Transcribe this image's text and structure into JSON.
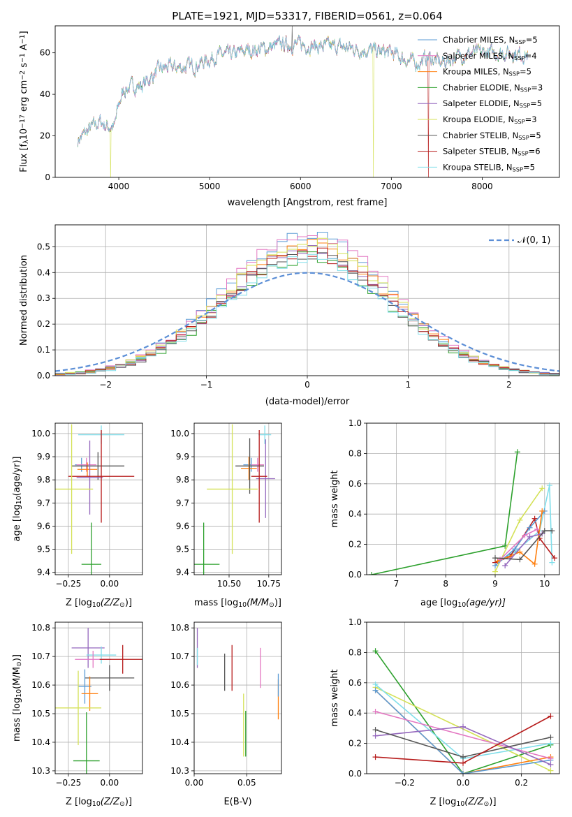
{
  "figure": {
    "title": "PLATE=1921, MJD=53317, FIBERID=0561, z=0.064"
  },
  "series_colors": {
    "Chabrier MILES": "#5b9bd5",
    "Salpeter MILES": "#e377c2",
    "Kroupa MILES": "#ff7f0e",
    "Chabrier ELODIE": "#2ca02c",
    "Salpeter ELODIE": "#9467bd",
    "Kroupa ELODIE": "#d4e157",
    "Chabrier STELIB": "#555555",
    "Salpeter STELIB": "#b71c1c",
    "Kroupa STELIB": "#80deea"
  },
  "chart_data": [
    {
      "id": "spectrum",
      "type": "line",
      "title": "PLATE=1921, MJD=53317, FIBERID=0561, z=0.064",
      "xlabel": "wavelength [Angstrom, rest frame]",
      "ylabel_parts": [
        "Flux [f",
        "λ",
        "10",
        "−17",
        " erg cm",
        "−2",
        " s",
        "−1",
        " A",
        "−1",
        "]"
      ],
      "xlim": [
        3300,
        8850
      ],
      "ylim": [
        0,
        73
      ],
      "xticks": [
        4000,
        5000,
        6000,
        7000,
        8000
      ],
      "yticks": [
        0,
        20,
        40,
        60
      ],
      "legend_position": "top-right",
      "legend": [
        {
          "label": "Chabrier MILES, N",
          "sub": "SSP",
          "suffix": "=5",
          "series": "Chabrier MILES"
        },
        {
          "label": "Salpeter MILES, N",
          "sub": "SSP",
          "suffix": "=4",
          "series": "Salpeter MILES"
        },
        {
          "label": "Kroupa MILES, N",
          "sub": "SSP",
          "suffix": "=5",
          "series": "Kroupa MILES"
        },
        {
          "label": "Chabrier ELODIE, N",
          "sub": "SSP",
          "suffix": "=3",
          "series": "Chabrier ELODIE"
        },
        {
          "label": "Salpeter ELODIE, N",
          "sub": "SSP",
          "suffix": "=5",
          "series": "Salpeter ELODIE"
        },
        {
          "label": "Kroupa ELODIE, N",
          "sub": "SSP",
          "suffix": "=3",
          "series": "Kroupa ELODIE"
        },
        {
          "label": "Chabrier STELIB, N",
          "sub": "SSP",
          "suffix": "=5",
          "series": "Chabrier STELIB"
        },
        {
          "label": "Salpeter STELIB, N",
          "sub": "SSP",
          "suffix": "=6",
          "series": "Salpeter STELIB"
        },
        {
          "label": "Kroupa STELIB, N",
          "sub": "SSP",
          "suffix": "=5",
          "series": "Kroupa STELIB"
        }
      ],
      "continuum": {
        "x": [
          3550,
          3650,
          3700,
          3800,
          3850,
          3950,
          4000,
          4050,
          4150,
          4250,
          4350,
          4450,
          4550,
          4700,
          4850,
          4950,
          5100,
          5250,
          5400,
          5600,
          5800,
          6000,
          6200,
          6400,
          6600,
          6800,
          7000,
          7100,
          7200,
          7300,
          7400,
          7550,
          7700,
          7900,
          8100,
          8300,
          8500
        ],
        "y": [
          18,
          22,
          24,
          27,
          25,
          24,
          35,
          42,
          44,
          44,
          48,
          52,
          53,
          53,
          54,
          56,
          59,
          59,
          61,
          62,
          64,
          64,
          63,
          63,
          62,
          61,
          60,
          58,
          56,
          55,
          58,
          55,
          58,
          60,
          60,
          60,
          59
        ]
      },
      "dropouts": [
        {
          "x": 3910,
          "series": "Kroupa ELODIE"
        },
        {
          "x": 6800,
          "series": "Kroupa ELODIE"
        },
        {
          "x": 7410,
          "series": "Salpeter STELIB"
        }
      ],
      "spike": {
        "x": 5910,
        "y": 73
      }
    },
    {
      "id": "residuals",
      "type": "histogram",
      "xlabel": "(data-model)/error",
      "ylabel": "Normed distribution",
      "xlim": [
        -2.5,
        2.5
      ],
      "ylim": [
        0,
        0.585
      ],
      "xticks": [
        -2,
        -1,
        0,
        1,
        2
      ],
      "yticks": [
        0.0,
        0.1,
        0.2,
        0.3,
        0.4,
        0.5
      ],
      "bin_width": 0.1,
      "legend_position": "top-right",
      "legend": [
        {
          "label": "𝒩(0, 1)",
          "style": "dashed"
        }
      ],
      "reference_curve": {
        "name": "𝒩(0, 1)",
        "mean": 0,
        "sigma": 1,
        "color": "#5b8ed6"
      },
      "peak_values": {
        "Chabrier MILES": 0.55,
        "Salpeter MILES": 0.555,
        "Kroupa MILES": 0.51,
        "Chabrier ELODIE": 0.46,
        "Salpeter ELODIE": 0.49,
        "Kroupa ELODIE": 0.52,
        "Chabrier STELIB": 0.47,
        "Salpeter STELIB": 0.48,
        "Kroupa STELIB": 0.45
      }
    },
    {
      "id": "age-vs-Z",
      "type": "scatter-errorbar",
      "xlabel_parts": [
        "Z [log",
        "10",
        "(Z/Z",
        "⊙",
        ")]"
      ],
      "ylabel_parts": [
        "age  [log",
        "10",
        "(age/yr)]"
      ],
      "xlim": [
        -0.33,
        0.2
      ],
      "ylim": [
        9.39,
        10.045
      ],
      "xticks": [
        -0.25,
        0.0
      ],
      "xticklabels": [
        "−0.25",
        "0.00"
      ],
      "yticks": [
        9.4,
        9.5,
        9.6,
        9.7,
        9.8,
        9.9,
        10.0
      ],
      "points": [
        {
          "series": "Kroupa STELIB",
          "x": -0.05,
          "xerr": 0.14,
          "y": 9.995,
          "yerr": 0.04
        },
        {
          "series": "Chabrier MILES",
          "x": -0.17,
          "xerr": 0.04,
          "y": 9.865,
          "yerr": 0.03
        },
        {
          "series": "Salpeter MILES",
          "x": -0.14,
          "xerr": 0.06,
          "y": 9.865,
          "yerr": 0.03
        },
        {
          "series": "Kroupa MILES",
          "x": -0.135,
          "xerr": 0.06,
          "y": 9.845,
          "yerr": 0.03
        },
        {
          "series": "Chabrier STELIB",
          "x": -0.07,
          "xerr": 0.16,
          "y": 9.86,
          "yerr": 0.06
        },
        {
          "series": "Salpeter ELODIE",
          "x": -0.12,
          "xerr": 0.08,
          "y": 9.81,
          "yerr": 0.16
        },
        {
          "series": "Salpeter STELIB",
          "x": -0.05,
          "xerr": 0.2,
          "y": 9.815,
          "yerr": 0.2
        },
        {
          "series": "Kroupa ELODIE",
          "x": -0.23,
          "xerr": 0.13,
          "y": 9.76,
          "yerr": 0.28
        },
        {
          "series": "Chabrier ELODIE",
          "x": -0.11,
          "xerr": 0.06,
          "y": 9.435,
          "yerr": 0.18
        }
      ]
    },
    {
      "id": "age-vs-mass",
      "type": "scatter-errorbar",
      "xlabel_parts": [
        "mass [log",
        "10",
        "(M/M",
        "⊙",
        ")]"
      ],
      "xlim": [
        10.28,
        10.83
      ],
      "ylim": [
        9.39,
        10.045
      ],
      "xticks": [
        10.5,
        10.75
      ],
      "xticklabels": [
        "10.50",
        "10.75"
      ],
      "yticks": [
        9.4,
        9.5,
        9.6,
        9.7,
        9.8,
        9.9,
        10.0
      ],
      "points": [
        {
          "series": "Kroupa STELIB",
          "x": 10.725,
          "xerr": 0.04,
          "y": 9.995,
          "yerr": 0.04
        },
        {
          "series": "Chabrier MILES",
          "x": 10.64,
          "xerr": 0.05,
          "y": 9.865,
          "yerr": 0.03
        },
        {
          "series": "Salpeter MILES",
          "x": 10.68,
          "xerr": 0.04,
          "y": 9.865,
          "yerr": 0.03
        },
        {
          "series": "Kroupa MILES",
          "x": 10.625,
          "xerr": 0.05,
          "y": 9.85,
          "yerr": 0.05
        },
        {
          "series": "Chabrier STELIB",
          "x": 10.63,
          "xerr": 0.09,
          "y": 9.86,
          "yerr": 0.12
        },
        {
          "series": "Salpeter ELODIE",
          "x": 10.73,
          "xerr": 0.06,
          "y": 9.805,
          "yerr": 0.17
        },
        {
          "series": "Salpeter STELIB",
          "x": 10.69,
          "xerr": 0.05,
          "y": 9.815,
          "yerr": 0.2
        },
        {
          "series": "Kroupa ELODIE",
          "x": 10.52,
          "xerr": 0.16,
          "y": 9.76,
          "yerr": 0.28
        },
        {
          "series": "Chabrier ELODIE",
          "x": 10.34,
          "xerr": 0.1,
          "y": 9.435,
          "yerr": 0.18
        }
      ]
    },
    {
      "id": "massweight-vs-age",
      "type": "line",
      "xlabel_parts": [
        "age  [log",
        "10",
        "(age/yr)]"
      ],
      "ylabel": "mass weight",
      "xlim": [
        6.4,
        10.3
      ],
      "ylim": [
        0,
        1.0
      ],
      "xticks": [
        7,
        8,
        9,
        10
      ],
      "yticks": [
        0.0,
        0.2,
        0.4,
        0.6,
        0.8,
        1.0
      ],
      "series": [
        {
          "name": "Chabrier ELODIE",
          "x": [
            6.5,
            9.2,
            9.45
          ],
          "y": [
            0.0,
            0.19,
            0.81
          ]
        },
        {
          "name": "Kroupa ELODIE",
          "x": [
            9.0,
            9.5,
            9.95
          ],
          "y": [
            0.02,
            0.36,
            0.57
          ]
        },
        {
          "name": "Kroupa STELIB",
          "x": [
            9.0,
            9.4,
            9.9,
            10.1,
            10.15
          ],
          "y": [
            0.08,
            0.15,
            0.29,
            0.59,
            0.08
          ]
        },
        {
          "name": "Salpeter STELIB",
          "x": [
            9.0,
            9.3,
            9.8,
            9.9,
            10.2
          ],
          "y": [
            0.08,
            0.12,
            0.37,
            0.24,
            0.11
          ]
        },
        {
          "name": "Chabrier MILES",
          "x": [
            9.0,
            9.4,
            9.7,
            10.0
          ],
          "y": [
            0.06,
            0.17,
            0.31,
            0.42
          ]
        },
        {
          "name": "Kroupa MILES",
          "x": [
            9.05,
            9.5,
            9.8,
            9.95
          ],
          "y": [
            0.09,
            0.15,
            0.07,
            0.42
          ]
        },
        {
          "name": "Salpeter MILES",
          "x": [
            9.1,
            9.6,
            9.85
          ],
          "y": [
            0.1,
            0.26,
            0.3
          ]
        },
        {
          "name": "Salpeter ELODIE",
          "x": [
            9.2,
            9.7,
            9.95
          ],
          "y": [
            0.06,
            0.25,
            0.27
          ]
        },
        {
          "name": "Chabrier STELIB",
          "x": [
            9.0,
            9.5,
            10.0,
            10.15
          ],
          "y": [
            0.11,
            0.1,
            0.29,
            0.29
          ]
        }
      ]
    },
    {
      "id": "mass-vs-Z",
      "type": "scatter-errorbar",
      "xlabel_parts": [
        "Z [log",
        "10",
        "(Z/Z",
        "⊙",
        ")]"
      ],
      "ylabel_parts": [
        "mass [log",
        "10",
        "(M/M",
        "⊙",
        ")]"
      ],
      "xlim": [
        -0.33,
        0.2
      ],
      "ylim": [
        10.29,
        10.82
      ],
      "xticks": [
        -0.25,
        0.0
      ],
      "xticklabels": [
        "−0.25",
        "0.00"
      ],
      "yticks": [
        10.3,
        10.4,
        10.5,
        10.6,
        10.7,
        10.8
      ],
      "points": [
        {
          "series": "Salpeter ELODIE",
          "x": -0.13,
          "xerr": 0.1,
          "y": 10.73,
          "yerr": 0.07
        },
        {
          "series": "Kroupa STELIB",
          "x": -0.05,
          "xerr": 0.09,
          "y": 10.705,
          "yerr": 0.03
        },
        {
          "series": "Salpeter MILES",
          "x": -0.1,
          "xerr": 0.11,
          "y": 10.69,
          "yerr": 0.03
        },
        {
          "series": "Salpeter STELIB",
          "x": 0.08,
          "xerr": 0.14,
          "y": 10.69,
          "yerr": 0.05
        },
        {
          "series": "Chabrier STELIB",
          "x": 0.0,
          "xerr": 0.15,
          "y": 10.625,
          "yerr": 0.045
        },
        {
          "series": "Chabrier MILES",
          "x": -0.15,
          "xerr": 0.04,
          "y": 10.595,
          "yerr": 0.06
        },
        {
          "series": "Kroupa MILES",
          "x": -0.12,
          "xerr": 0.05,
          "y": 10.57,
          "yerr": 0.06
        },
        {
          "series": "Kroupa ELODIE",
          "x": -0.19,
          "xerr": 0.14,
          "y": 10.52,
          "yerr": 0.13
        },
        {
          "series": "Chabrier ELODIE",
          "x": -0.14,
          "xerr": 0.08,
          "y": 10.335,
          "yerr": 0.17
        }
      ]
    },
    {
      "id": "mass-vs-EBV",
      "type": "scatter-errorbar",
      "xlabel": "E(B-V)",
      "xlim": [
        0.0,
        0.083
      ],
      "ylim": [
        10.29,
        10.82
      ],
      "xticks": [
        0.0,
        0.05
      ],
      "xticklabels": [
        "0.00",
        "0.05"
      ],
      "yticks": [
        10.3,
        10.4,
        10.5,
        10.6,
        10.7,
        10.8
      ],
      "points": [
        {
          "series": "Salpeter ELODIE",
          "x": 0.003,
          "y": 10.73,
          "yerr": 0.07
        },
        {
          "series": "Kroupa STELIB",
          "x": 0.003,
          "y": 10.7,
          "yerr": 0.03
        },
        {
          "series": "Chabrier STELIB",
          "x": 0.029,
          "y": 10.645,
          "yerr": 0.065
        },
        {
          "series": "Salpeter STELIB",
          "x": 0.036,
          "y": 10.66,
          "yerr": 0.08
        },
        {
          "series": "Salpeter MILES",
          "x": 0.063,
          "y": 10.66,
          "yerr": 0.07
        },
        {
          "series": "Kroupa ELODIE",
          "x": 0.047,
          "y": 10.46,
          "yerr": 0.11
        },
        {
          "series": "Chabrier ELODIE",
          "x": 0.049,
          "y": 10.43,
          "yerr": 0.08
        },
        {
          "series": "Kroupa MILES",
          "x": 0.08,
          "y": 10.55,
          "yerr": 0.07
        },
        {
          "series": "Chabrier MILES",
          "x": 0.08,
          "y": 10.6,
          "yerr": 0.04
        }
      ]
    },
    {
      "id": "massweight-vs-Z",
      "type": "line",
      "xlabel_parts": [
        "Z [log",
        "10",
        "(Z/Z",
        "⊙",
        ")]"
      ],
      "ylabel": "mass weight",
      "xlim": [
        -0.33,
        0.33
      ],
      "ylim": [
        0,
        1.0
      ],
      "xticks": [
        -0.2,
        0.0,
        0.2
      ],
      "xticklabels": [
        "−0.2",
        "0.0",
        "0.2"
      ],
      "yticks": [
        0.0,
        0.2,
        0.4,
        0.6,
        0.8,
        1.0
      ],
      "series": [
        {
          "name": "Chabrier ELODIE",
          "x": [
            -0.3,
            0.0,
            0.3
          ],
          "y": [
            0.81,
            0.0,
            0.19
          ]
        },
        {
          "name": "Kroupa ELODIE",
          "x": [
            -0.3,
            0.3
          ],
          "y": [
            0.57,
            0.02
          ]
        },
        {
          "name": "Kroupa STELIB",
          "x": [
            -0.3,
            0.0,
            0.3
          ],
          "y": [
            0.59,
            0.1,
            0.2
          ]
        },
        {
          "name": "Kroupa MILES",
          "x": [
            -0.3,
            0.0,
            0.3
          ],
          "y": [
            0.55,
            0.0,
            0.11
          ]
        },
        {
          "name": "Chabrier MILES",
          "x": [
            -0.3,
            0.0,
            0.3
          ],
          "y": [
            0.55,
            0.0,
            0.09
          ]
        },
        {
          "name": "Salpeter MILES",
          "x": [
            -0.3,
            0.3
          ],
          "y": [
            0.41,
            0.1
          ]
        },
        {
          "name": "Salpeter ELODIE",
          "x": [
            -0.3,
            0.0,
            0.3
          ],
          "y": [
            0.25,
            0.31,
            0.06
          ]
        },
        {
          "name": "Chabrier STELIB",
          "x": [
            -0.3,
            0.0,
            0.3
          ],
          "y": [
            0.29,
            0.11,
            0.24
          ]
        },
        {
          "name": "Salpeter STELIB",
          "x": [
            -0.3,
            0.0,
            0.3
          ],
          "y": [
            0.11,
            0.07,
            0.38
          ]
        }
      ]
    }
  ]
}
